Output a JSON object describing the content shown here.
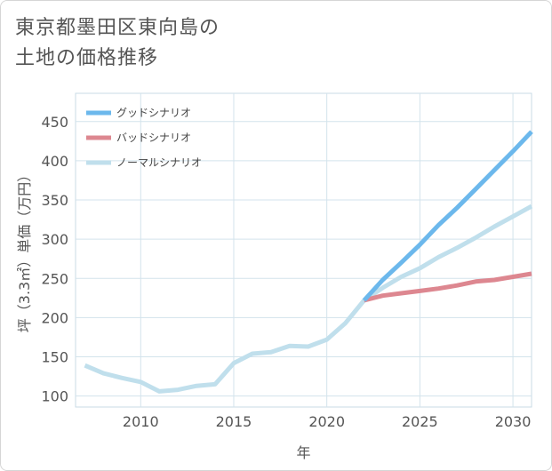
{
  "page": {
    "title": "東京都墨田区東向島の\n土地の価格推移"
  },
  "chart_data": {
    "type": "line",
    "xlabel": "年",
    "ylabel": "坪（3.3㎡）単価（万円）",
    "xlim": [
      2006.5,
      2031
    ],
    "ylim": [
      86,
      486
    ],
    "xticks": [
      2010,
      2015,
      2020,
      2025,
      2030
    ],
    "yticks": [
      100,
      150,
      200,
      250,
      300,
      350,
      400,
      450
    ],
    "grid": true,
    "legend_position": "top-left",
    "series": [
      {
        "name": "グッドシナリオ",
        "color": "#6cb8ec",
        "x": [
          2022,
          2023,
          2024,
          2025,
          2026,
          2027,
          2028,
          2029,
          2030,
          2031
        ],
        "y": [
          222,
          248,
          270,
          293,
          318,
          340,
          364,
          388,
          412,
          437
        ]
      },
      {
        "name": "バッドシナリオ",
        "color": "#dd8790",
        "x": [
          2022,
          2023,
          2024,
          2025,
          2026,
          2027,
          2028,
          2029,
          2030,
          2031
        ],
        "y": [
          222,
          228,
          231,
          234,
          237,
          241,
          246,
          248,
          252,
          256
        ]
      },
      {
        "name": "ノーマルシナリオ",
        "color": "#c0dfec",
        "x": [
          2007,
          2008,
          2009,
          2010,
          2011,
          2012,
          2013,
          2014,
          2015,
          2016,
          2017,
          2018,
          2019,
          2020,
          2021,
          2022,
          2023,
          2024,
          2025,
          2026,
          2027,
          2028,
          2029,
          2030,
          2031
        ],
        "y": [
          139,
          129,
          123,
          118,
          106,
          108,
          113,
          115,
          142,
          154,
          156,
          164,
          163,
          172,
          193,
          222,
          238,
          252,
          263,
          277,
          289,
          302,
          316,
          329,
          342
        ]
      }
    ]
  }
}
